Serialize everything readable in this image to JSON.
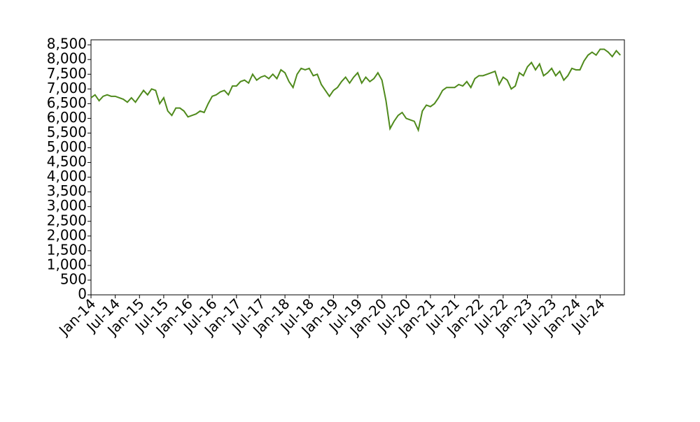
{
  "chart_data": {
    "type": "line",
    "x": [
      "2014-01",
      "2014-02",
      "2014-03",
      "2014-04",
      "2014-05",
      "2014-06",
      "2014-07",
      "2014-08",
      "2014-09",
      "2014-10",
      "2014-11",
      "2014-12",
      "2015-01",
      "2015-02",
      "2015-03",
      "2015-04",
      "2015-05",
      "2015-06",
      "2015-07",
      "2015-08",
      "2015-09",
      "2015-10",
      "2015-11",
      "2015-12",
      "2016-01",
      "2016-02",
      "2016-03",
      "2016-04",
      "2016-05",
      "2016-06",
      "2016-07",
      "2016-08",
      "2016-09",
      "2016-10",
      "2016-11",
      "2016-12",
      "2017-01",
      "2017-02",
      "2017-03",
      "2017-04",
      "2017-05",
      "2017-06",
      "2017-07",
      "2017-08",
      "2017-09",
      "2017-10",
      "2017-11",
      "2017-12",
      "2018-01",
      "2018-02",
      "2018-03",
      "2018-04",
      "2018-05",
      "2018-06",
      "2018-07",
      "2018-08",
      "2018-09",
      "2018-10",
      "2018-11",
      "2018-12",
      "2019-01",
      "2019-02",
      "2019-03",
      "2019-04",
      "2019-05",
      "2019-06",
      "2019-07",
      "2019-08",
      "2019-09",
      "2019-10",
      "2019-11",
      "2019-12",
      "2020-01",
      "2020-02",
      "2020-03",
      "2020-04",
      "2020-05",
      "2020-06",
      "2020-07",
      "2020-08",
      "2020-09",
      "2020-10",
      "2020-11",
      "2020-12",
      "2021-01",
      "2021-02",
      "2021-03",
      "2021-04",
      "2021-05",
      "2021-06",
      "2021-07",
      "2021-08",
      "2021-09",
      "2021-10",
      "2021-11",
      "2021-12",
      "2022-01",
      "2022-02",
      "2022-03",
      "2022-04",
      "2022-05",
      "2022-06",
      "2022-07",
      "2022-08",
      "2022-09",
      "2022-10",
      "2022-11",
      "2022-12",
      "2023-01",
      "2023-02",
      "2023-03",
      "2023-04",
      "2023-05",
      "2023-06",
      "2023-07",
      "2023-08",
      "2023-09",
      "2023-10",
      "2023-11",
      "2023-12",
      "2024-01",
      "2024-02",
      "2024-03",
      "2024-04",
      "2024-05",
      "2024-06",
      "2024-07",
      "2024-08",
      "2024-09",
      "2024-10",
      "2024-11",
      "2024-12"
    ],
    "values": [
      6700,
      6800,
      6600,
      6750,
      6800,
      6750,
      6750,
      6700,
      6650,
      6550,
      6700,
      6550,
      6750,
      6950,
      6800,
      7000,
      6950,
      6500,
      6700,
      6250,
      6100,
      6350,
      6350,
      6250,
      6050,
      6100,
      6150,
      6250,
      6200,
      6500,
      6750,
      6800,
      6900,
      6950,
      6800,
      7100,
      7100,
      7250,
      7300,
      7200,
      7500,
      7300,
      7400,
      7450,
      7350,
      7500,
      7350,
      7650,
      7550,
      7250,
      7050,
      7500,
      7700,
      7650,
      7700,
      7450,
      7500,
      7150,
      6950,
      6750,
      6950,
      7050,
      7250,
      7400,
      7200,
      7400,
      7550,
      7200,
      7400,
      7250,
      7350,
      7550,
      7300,
      6600,
      5650,
      5900,
      6100,
      6200,
      6000,
      5950,
      5900,
      5600,
      6250,
      6450,
      6400,
      6500,
      6700,
      6950,
      7050,
      7050,
      7050,
      7150,
      7100,
      7250,
      7050,
      7350,
      7450,
      7450,
      7500,
      7550,
      7600,
      7150,
      7400,
      7300,
      7000,
      7100,
      7550,
      7450,
      7750,
      7900,
      7650,
      7850,
      7450,
      7550,
      7700,
      7450,
      7600,
      7300,
      7450,
      7700,
      7650,
      7650,
      7950,
      8150,
      8250,
      8150,
      8350,
      8350,
      8250,
      8100,
      8300,
      8150
    ],
    "color": "#4f8a1c",
    "xlim": [
      "2014-01",
      "2025-01"
    ],
    "xticks": [
      {
        "value": "2014-01",
        "label": "Jan-14"
      },
      {
        "value": "2014-07",
        "label": "Jul-14"
      },
      {
        "value": "2015-01",
        "label": "Jan-15"
      },
      {
        "value": "2015-07",
        "label": "Jul-15"
      },
      {
        "value": "2016-01",
        "label": "Jan-16"
      },
      {
        "value": "2016-07",
        "label": "Jul-16"
      },
      {
        "value": "2017-01",
        "label": "Jan-17"
      },
      {
        "value": "2017-07",
        "label": "Jul-17"
      },
      {
        "value": "2018-01",
        "label": "Jan-18"
      },
      {
        "value": "2018-07",
        "label": "Jul-18"
      },
      {
        "value": "2019-01",
        "label": "Jan-19"
      },
      {
        "value": "2019-07",
        "label": "Jul-19"
      },
      {
        "value": "2020-01",
        "label": "Jan-20"
      },
      {
        "value": "2020-07",
        "label": "Jul-20"
      },
      {
        "value": "2021-01",
        "label": "Jan-21"
      },
      {
        "value": "2021-07",
        "label": "Jul-21"
      },
      {
        "value": "2022-01",
        "label": "Jan-22"
      },
      {
        "value": "2022-07",
        "label": "Jul-22"
      },
      {
        "value": "2023-01",
        "label": "Jan-23"
      },
      {
        "value": "2023-07",
        "label": "Jul-23"
      },
      {
        "value": "2024-01",
        "label": "Jan-24"
      },
      {
        "value": "2024-07",
        "label": "Jul-24"
      }
    ],
    "ylim": [
      0,
      8670
    ],
    "yticks": [
      0,
      500,
      {
        "value": 1000,
        "label": "1,000"
      },
      {
        "value": 1500,
        "label": "1,500"
      },
      {
        "value": 2000,
        "label": "2,000"
      },
      {
        "value": 2500,
        "label": "2,500"
      },
      {
        "value": 3000,
        "label": "3,000"
      },
      {
        "value": 3500,
        "label": "3,500"
      },
      {
        "value": 4000,
        "label": "4,000"
      },
      {
        "value": 4500,
        "label": "4,500"
      },
      {
        "value": 5000,
        "label": "5,000"
      },
      {
        "value": 5500,
        "label": "5,500"
      },
      {
        "value": 6000,
        "label": "6,000"
      },
      {
        "value": 6500,
        "label": "6,500"
      },
      {
        "value": 7000,
        "label": "7,000"
      },
      {
        "value": 7500,
        "label": "7,500"
      },
      {
        "value": 8000,
        "label": "8,000"
      },
      {
        "value": 8500,
        "label": "8,500"
      }
    ],
    "grid": false
  }
}
